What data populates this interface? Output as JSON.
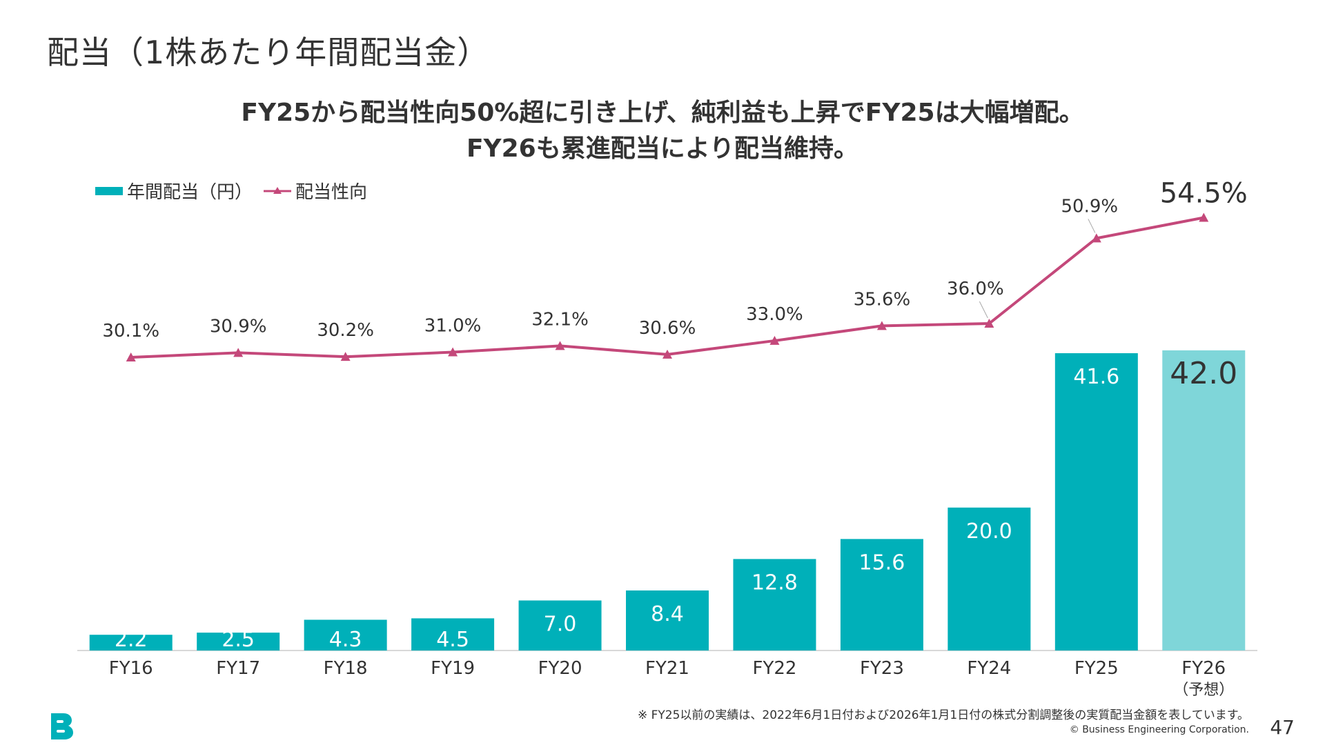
{
  "page_title": "配当（1株あたり年間配当金）",
  "headline": {
    "line1": "FY25から配当性向50%超に引き上げ、純利益も上昇でFY25は大幅増配。",
    "line2": "FY26も累進配当により配当維持。"
  },
  "legend": {
    "bar_label": "年間配当（円）",
    "line_label": "配当性向"
  },
  "colors": {
    "bar": "#00b0b9",
    "bar_forecast": "#7fd6d9",
    "line": "#c4487a",
    "text": "#333333"
  },
  "chart_data": {
    "type": "bar",
    "categories": [
      "FY16",
      "FY17",
      "FY18",
      "FY19",
      "FY20",
      "FY21",
      "FY22",
      "FY23",
      "FY24",
      "FY25",
      "FY26"
    ],
    "category_sublabels": [
      "",
      "",
      "",
      "",
      "",
      "",
      "",
      "",
      "",
      "",
      "（予想）"
    ],
    "series": [
      {
        "name": "年間配当（円）",
        "type": "bar",
        "values": [
          2.2,
          2.5,
          4.3,
          4.5,
          7.0,
          8.4,
          12.8,
          15.6,
          20.0,
          41.6,
          42.0
        ],
        "labels": [
          "2.2",
          "2.5",
          "4.3",
          "4.5",
          "7.0",
          "8.4",
          "12.8",
          "15.6",
          "20.0",
          "41.6",
          "42.0"
        ],
        "forecast": [
          false,
          false,
          false,
          false,
          false,
          false,
          false,
          false,
          false,
          false,
          true
        ]
      },
      {
        "name": "配当性向",
        "type": "line",
        "values": [
          30.1,
          30.9,
          30.2,
          31.0,
          32.1,
          30.6,
          33.0,
          35.6,
          36.0,
          50.9,
          54.5
        ],
        "labels": [
          "30.1%",
          "30.9%",
          "30.2%",
          "31.0%",
          "32.1%",
          "30.6%",
          "33.0%",
          "35.6%",
          "36.0%",
          "50.9%",
          "54.5%"
        ]
      }
    ],
    "legend": "top-left",
    "grid": false
  },
  "footnote": "※ FY25以前の実績は、2022年6月1日付および2026年1月1日付の株式分割調整後の実質配当金額を表しています。",
  "copyright": "© Business Engineering Corporation.",
  "page_number": "47",
  "logo_icon": "b-logo-icon"
}
